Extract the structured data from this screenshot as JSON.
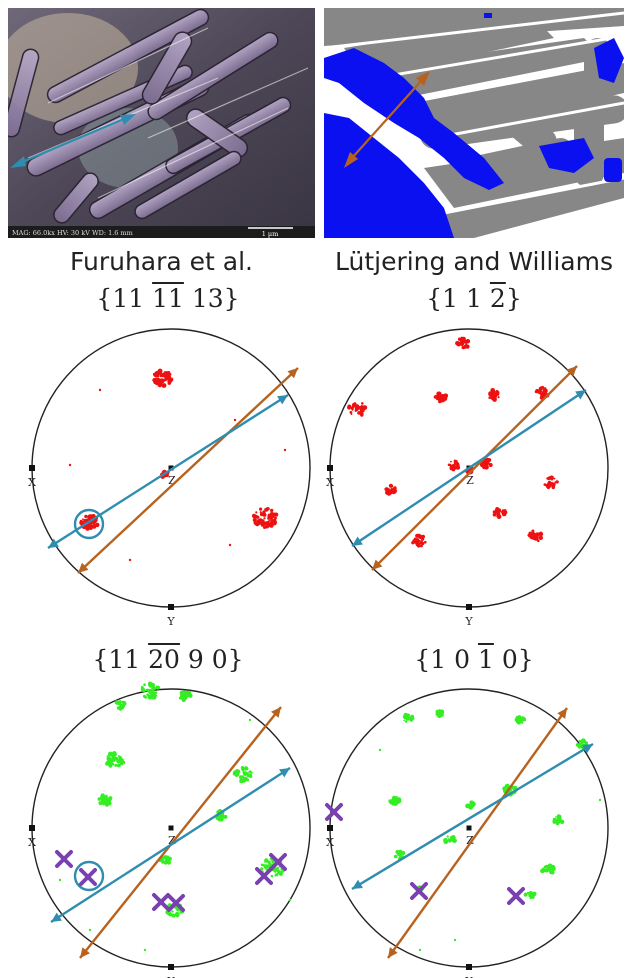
{
  "images": [
    {
      "caption": "Furuhara et al.",
      "scalebar_label": "1 µm",
      "info_bar": "MAG: 66.0kx   HV: 30 kV   WD: 1.6 mm"
    },
    {
      "caption": "Lütjering and Williams"
    }
  ],
  "pole_figures": [
    {
      "plane": {
        "pre": "{11 ",
        "over1": "11",
        "mid": " ",
        "over2": "",
        "post": " 13}",
        "alt": "{11 11 13}"
      },
      "axes": {
        "x": "X",
        "y": "Y",
        "z": "Z"
      }
    },
    {
      "plane": {
        "pre": "{1 1 ",
        "over1": "2",
        "mid": "",
        "over2": "",
        "post": "}",
        "alt": "{1 1 2}"
      },
      "axes": {
        "x": "X",
        "y": "Y",
        "z": "Z"
      }
    },
    {
      "plane": {
        "pre": "{11 ",
        "over1": "20",
        "mid": " 9 0",
        "over2": "",
        "post": "}",
        "alt": "{11 20 9 0}"
      },
      "axes": {
        "x": "X",
        "y": "Y",
        "z": "Z"
      }
    },
    {
      "plane": {
        "pre": "{1 0 ",
        "over1": "1",
        "mid": " 0",
        "over2": "",
        "post": "}",
        "alt": "{1 0 1 0}"
      },
      "axes": {
        "x": "X",
        "y": "Y",
        "z": "Z"
      }
    }
  ],
  "colors": {
    "arrow_blue": "#2f8db0",
    "arrow_brown": "#b8621f",
    "pole_red": "#ee1111",
    "pole_green": "#33ee22",
    "cross_purple": "#7a40b0",
    "alpha_gray": "#878787",
    "beta_blue": "#0a10f0"
  }
}
